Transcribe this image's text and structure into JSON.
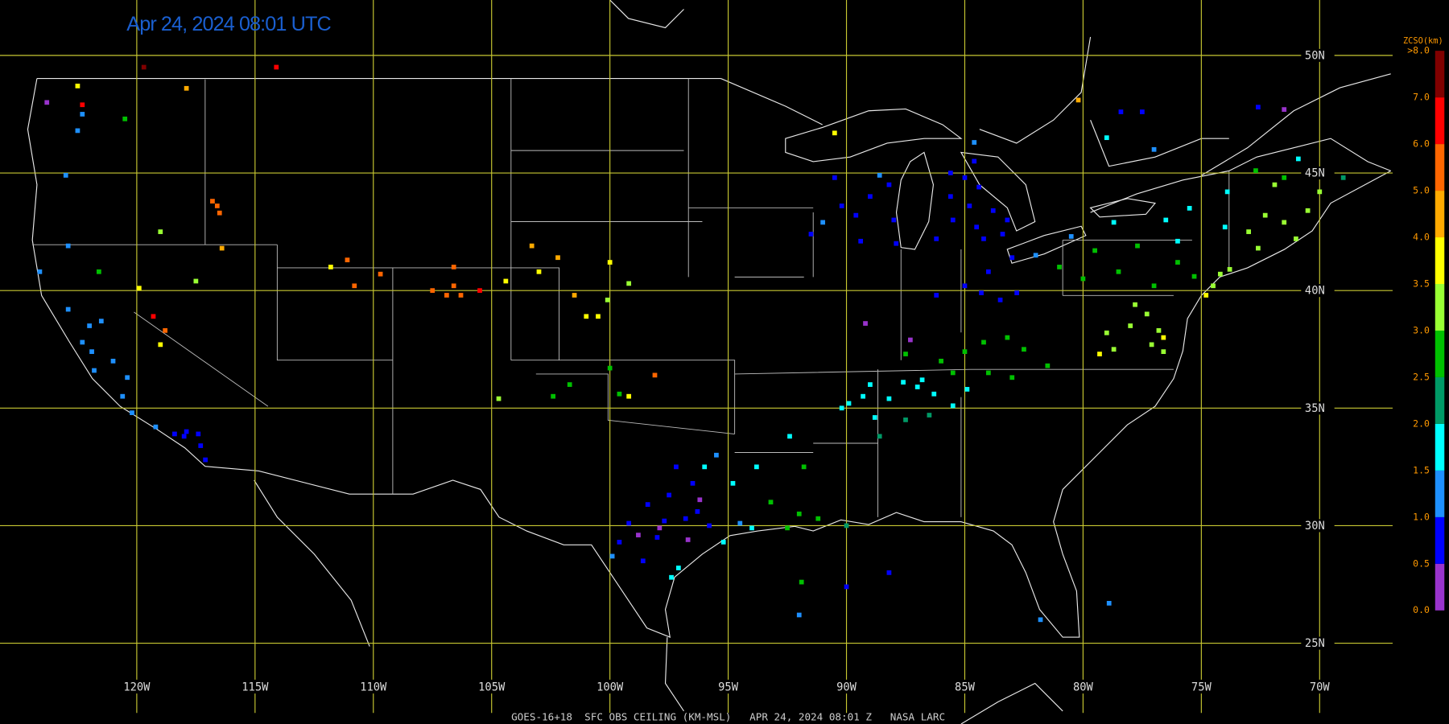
{
  "header": {
    "title": "Apr 24, 2024 08:01 UTC",
    "footer": "GOES-16+18  SFC OBS CEILING (KM-MSL)   APR 24, 2024 08:01 Z   NASA LARC"
  },
  "map": {
    "longitudes": [
      {
        "value": -120,
        "label": "120W"
      },
      {
        "value": -115,
        "label": "115W"
      },
      {
        "value": -110,
        "label": "110W"
      },
      {
        "value": -105,
        "label": "105W"
      },
      {
        "value": -100,
        "label": "100W"
      },
      {
        "value": -95,
        "label": "95W"
      },
      {
        "value": -90,
        "label": "90W"
      },
      {
        "value": -85,
        "label": "85W"
      },
      {
        "value": -80,
        "label": "80W"
      },
      {
        "value": -75,
        "label": "75W"
      },
      {
        "value": -70,
        "label": "70W"
      }
    ],
    "latitudes": [
      {
        "value": 50,
        "label": "50N"
      },
      {
        "value": 45,
        "label": "45N"
      },
      {
        "value": 40,
        "label": "40N"
      },
      {
        "value": 35,
        "label": "35N"
      },
      {
        "value": 30,
        "label": "30N"
      },
      {
        "value": 25,
        "label": "25N"
      }
    ],
    "stations": [
      [
        -85.0,
        44.8,
        0.7
      ],
      [
        -84.4,
        44.4,
        0.7
      ],
      [
        -85.6,
        44.0,
        0.7
      ],
      [
        -84.8,
        43.6,
        0.7
      ],
      [
        -83.8,
        43.4,
        0.7
      ],
      [
        -85.5,
        43.0,
        0.7
      ],
      [
        -84.5,
        42.7,
        0.7
      ],
      [
        -83.4,
        42.4,
        0.7
      ],
      [
        -86.2,
        42.2,
        0.7
      ],
      [
        -84.2,
        42.2,
        0.7
      ],
      [
        -83.2,
        43.0,
        0.7
      ],
      [
        -84.6,
        45.5,
        0.7
      ],
      [
        -85.6,
        45.0,
        0.7
      ],
      [
        -89.6,
        43.2,
        0.7
      ],
      [
        -88.2,
        44.5,
        0.7
      ],
      [
        -89.0,
        44.0,
        0.7
      ],
      [
        -88.0,
        43.0,
        0.7
      ],
      [
        -90.5,
        44.8,
        0.7
      ],
      [
        -91.5,
        42.4,
        0.7
      ],
      [
        -89.4,
        42.1,
        0.7
      ],
      [
        -87.9,
        42.0,
        0.7
      ],
      [
        -90.2,
        43.6,
        0.7
      ],
      [
        -91.0,
        42.9,
        1.2
      ],
      [
        -88.6,
        44.9,
        1.2
      ],
      [
        -84.3,
        39.9,
        0.8
      ],
      [
        -83.5,
        39.6,
        0.8
      ],
      [
        -85.0,
        40.2,
        0.8
      ],
      [
        -82.8,
        39.9,
        0.8
      ],
      [
        -86.2,
        39.8,
        0.8
      ],
      [
        -84.0,
        40.8,
        0.8
      ],
      [
        -83.0,
        41.4,
        0.8
      ],
      [
        -82.0,
        41.5,
        1.2
      ],
      [
        -89.2,
        38.6,
        0.3
      ],
      [
        -87.3,
        37.9,
        0.3
      ],
      [
        -89.9,
        35.2,
        1.8
      ],
      [
        -89.0,
        36.0,
        1.8
      ],
      [
        -88.2,
        35.4,
        1.8
      ],
      [
        -87.6,
        36.1,
        1.8
      ],
      [
        -86.8,
        36.2,
        1.8
      ],
      [
        -86.3,
        35.6,
        1.8
      ],
      [
        -85.5,
        35.1,
        1.8
      ],
      [
        -89.3,
        35.5,
        1.8
      ],
      [
        -88.8,
        34.6,
        1.8
      ],
      [
        -87.0,
        35.9,
        1.8
      ],
      [
        -84.9,
        35.8,
        1.8
      ],
      [
        -90.2,
        35.0,
        1.8
      ],
      [
        -86.0,
        37.0,
        2.7
      ],
      [
        -85.0,
        37.4,
        2.7
      ],
      [
        -84.2,
        37.8,
        2.7
      ],
      [
        -83.2,
        38.0,
        2.7
      ],
      [
        -82.5,
        37.5,
        2.7
      ],
      [
        -84.0,
        36.5,
        2.7
      ],
      [
        -83.0,
        36.3,
        2.7
      ],
      [
        -81.5,
        36.8,
        2.7
      ],
      [
        -85.5,
        36.5,
        2.7
      ],
      [
        -87.5,
        37.3,
        2.7
      ],
      [
        -88.6,
        33.8,
        2.2
      ],
      [
        -87.5,
        34.5,
        2.2
      ],
      [
        -86.5,
        34.7,
        2.2
      ],
      [
        -78.0,
        38.5,
        3.2
      ],
      [
        -77.3,
        39.0,
        3.2
      ],
      [
        -79.0,
        38.2,
        3.2
      ],
      [
        -76.8,
        38.3,
        3.2
      ],
      [
        -77.8,
        39.4,
        3.2
      ],
      [
        -78.7,
        37.5,
        3.2
      ],
      [
        -76.6,
        37.4,
        3.2
      ],
      [
        -76.6,
        38.0,
        3.8
      ],
      [
        -79.3,
        37.3,
        3.8
      ],
      [
        -77.1,
        37.7,
        3.2
      ],
      [
        -80.0,
        40.5,
        2.8
      ],
      [
        -78.5,
        40.8,
        2.8
      ],
      [
        -77.0,
        40.2,
        2.8
      ],
      [
        -76.0,
        41.2,
        2.8
      ],
      [
        -75.3,
        40.6,
        2.8
      ],
      [
        -79.5,
        41.7,
        2.8
      ],
      [
        -77.7,
        41.9,
        2.8
      ],
      [
        -80.5,
        42.3,
        1.2
      ],
      [
        -81.0,
        41.0,
        2.8
      ],
      [
        -76.5,
        43.0,
        1.8
      ],
      [
        -74.0,
        42.7,
        1.8
      ],
      [
        -75.5,
        43.5,
        1.8
      ],
      [
        -73.9,
        44.2,
        1.8
      ],
      [
        -78.7,
        42.9,
        1.8
      ],
      [
        -76.0,
        42.1,
        1.8
      ],
      [
        -74.2,
        40.7,
        3.3
      ],
      [
        -73.8,
        40.9,
        3.3
      ],
      [
        -74.5,
        40.2,
        3.3
      ],
      [
        -74.8,
        39.8,
        3.7
      ],
      [
        -73.0,
        42.5,
        3.2
      ],
      [
        -72.3,
        43.2,
        3.2
      ],
      [
        -71.5,
        42.9,
        3.2
      ],
      [
        -71.0,
        42.2,
        3.2
      ],
      [
        -72.6,
        41.8,
        3.2
      ],
      [
        -70.5,
        43.4,
        3.2
      ],
      [
        -70.0,
        44.2,
        3.2
      ],
      [
        -71.9,
        44.5,
        3.2
      ],
      [
        -71.5,
        44.8,
        2.7
      ],
      [
        -72.7,
        45.1,
        2.7
      ],
      [
        -69.0,
        44.8,
        2.3
      ],
      [
        -70.9,
        45.6,
        1.8
      ],
      [
        -98.4,
        30.9,
        0.8
      ],
      [
        -97.5,
        31.3,
        0.8
      ],
      [
        -96.8,
        30.3,
        0.8
      ],
      [
        -97.7,
        30.2,
        0.8
      ],
      [
        -96.3,
        30.6,
        0.8
      ],
      [
        -99.2,
        30.1,
        0.8
      ],
      [
        -98.0,
        29.5,
        0.8
      ],
      [
        -95.8,
        30.0,
        0.8
      ],
      [
        -97.2,
        32.5,
        0.8
      ],
      [
        -96.5,
        31.8,
        0.8
      ],
      [
        -99.6,
        29.3,
        0.8
      ],
      [
        -98.6,
        28.5,
        0.8
      ],
      [
        -97.9,
        29.9,
        0.3
      ],
      [
        -96.7,
        29.4,
        0.3
      ],
      [
        -98.8,
        29.6,
        0.3
      ],
      [
        -96.2,
        31.1,
        0.3
      ],
      [
        -94.5,
        30.1,
        1.2
      ],
      [
        -95.5,
        33.0,
        1.2
      ],
      [
        -99.9,
        28.7,
        1.2
      ],
      [
        -97.4,
        27.8,
        1.7
      ],
      [
        -97.1,
        28.2,
        1.7
      ],
      [
        -95.2,
        29.3,
        1.7
      ],
      [
        -94.0,
        29.9,
        1.7
      ],
      [
        -96.0,
        32.5,
        1.7
      ],
      [
        -94.8,
        31.8,
        1.7
      ],
      [
        -93.8,
        32.5,
        1.7
      ],
      [
        -92.4,
        33.8,
        1.7
      ],
      [
        -92.0,
        30.5,
        2.7
      ],
      [
        -91.2,
        30.3,
        2.7
      ],
      [
        -93.2,
        31.0,
        2.7
      ],
      [
        -91.8,
        32.5,
        2.7
      ],
      [
        -92.5,
        29.9,
        2.7
      ],
      [
        -90.0,
        30.0,
        2.3
      ],
      [
        -91.9,
        27.6,
        2.7
      ],
      [
        -92.0,
        26.2,
        1.2
      ],
      [
        -90.0,
        27.4,
        0.8
      ],
      [
        -88.2,
        28.0,
        0.8
      ],
      [
        -81.8,
        26.0,
        1.2
      ],
      [
        -78.9,
        26.7,
        1.2
      ],
      [
        -102.4,
        35.5,
        2.7
      ],
      [
        -101.7,
        36.0,
        2.7
      ],
      [
        -100.0,
        36.7,
        2.7
      ],
      [
        -99.6,
        35.6,
        2.7
      ],
      [
        -99.2,
        35.5,
        3.7
      ],
      [
        -98.1,
        36.4,
        5.8
      ],
      [
        -104.7,
        35.4,
        3.2
      ],
      [
        -101.0,
        38.9,
        3.8
      ],
      [
        -100.5,
        38.9,
        3.8
      ],
      [
        -104.4,
        40.4,
        3.8
      ],
      [
        -103.0,
        40.8,
        3.8
      ],
      [
        -100.0,
        41.2,
        3.8
      ],
      [
        -101.5,
        39.8,
        4.5
      ],
      [
        -102.2,
        41.4,
        4.5
      ],
      [
        -103.3,
        41.9,
        4.5
      ],
      [
        -100.1,
        39.6,
        3.2
      ],
      [
        -99.2,
        40.3,
        3.2
      ],
      [
        -107.5,
        40.0,
        5.8
      ],
      [
        -106.6,
        40.2,
        5.8
      ],
      [
        -106.9,
        39.8,
        5.8
      ],
      [
        -106.3,
        39.8,
        5.8
      ],
      [
        -109.7,
        40.7,
        5.0
      ],
      [
        -106.6,
        41.0,
        5.0
      ],
      [
        -105.5,
        40.0,
        6.5
      ],
      [
        -111.8,
        41.0,
        3.7
      ],
      [
        -111.1,
        41.3,
        5.8
      ],
      [
        -110.8,
        40.2,
        5.2
      ],
      [
        -117.5,
        40.4,
        3.2
      ],
      [
        -116.4,
        41.8,
        4.8
      ],
      [
        -116.5,
        43.3,
        5.0
      ],
      [
        -116.8,
        43.8,
        5.8
      ],
      [
        -119.0,
        42.5,
        3.2
      ],
      [
        -118.8,
        38.3,
        5.2
      ],
      [
        -119.0,
        37.7,
        3.8
      ],
      [
        -119.9,
        40.1,
        3.7
      ],
      [
        -119.3,
        38.9,
        6.3
      ],
      [
        -122.3,
        37.8,
        1.2
      ],
      [
        -121.9,
        37.4,
        1.2
      ],
      [
        -122.0,
        38.5,
        1.2
      ],
      [
        -121.5,
        38.7,
        1.2
      ],
      [
        -121.0,
        37.0,
        1.2
      ],
      [
        -120.4,
        36.3,
        1.2
      ],
      [
        -121.8,
        36.6,
        1.2
      ],
      [
        -122.9,
        39.2,
        1.2
      ],
      [
        -120.6,
        35.5,
        1.2
      ],
      [
        -120.2,
        34.8,
        1.2
      ],
      [
        -124.1,
        40.8,
        1.2
      ],
      [
        -118.4,
        33.9,
        0.8
      ],
      [
        -117.9,
        34.0,
        0.8
      ],
      [
        -117.4,
        33.9,
        0.8
      ],
      [
        -117.1,
        32.8,
        0.8
      ],
      [
        -117.3,
        33.4,
        0.8
      ],
      [
        -118.0,
        33.8,
        0.8
      ],
      [
        -119.2,
        34.2,
        1.2
      ],
      [
        -122.3,
        47.5,
        1.2
      ],
      [
        -122.5,
        46.8,
        1.2
      ],
      [
        -123.0,
        44.9,
        1.2
      ],
      [
        -122.9,
        41.9,
        1.2
      ],
      [
        -122.5,
        48.7,
        3.8
      ],
      [
        -122.3,
        47.9,
        6.5
      ],
      [
        -121.6,
        40.8,
        2.7
      ],
      [
        -120.5,
        47.3,
        2.7
      ],
      [
        -123.8,
        48.0,
        0.3
      ],
      [
        -119.7,
        49.5,
        7.5
      ],
      [
        -114.1,
        49.5,
        6.5
      ],
      [
        -117.9,
        48.6,
        4.8
      ],
      [
        -116.6,
        43.6,
        5.0
      ],
      [
        -78.4,
        47.6,
        0.8
      ],
      [
        -77.5,
        47.6,
        0.8
      ],
      [
        -72.6,
        47.8,
        0.8
      ],
      [
        -71.5,
        47.7,
        0.3
      ],
      [
        -84.6,
        46.3,
        1.2
      ],
      [
        -90.5,
        46.7,
        3.7
      ],
      [
        -80.2,
        48.1,
        4.7
      ],
      [
        -77.0,
        46.0,
        1.2
      ],
      [
        -79.0,
        46.5,
        1.8
      ]
    ]
  },
  "legend": {
    "title": "ZCSO(km)",
    "levels": [
      {
        "value": 0,
        "label": "0.0"
      },
      {
        "value": 0.5,
        "label": "0.5"
      },
      {
        "value": 1,
        "label": "1.0"
      },
      {
        "value": 1.5,
        "label": "1.5"
      },
      {
        "value": 2,
        "label": "2.0"
      },
      {
        "value": 2.5,
        "label": "2.5"
      },
      {
        "value": 3,
        "label": "3.0"
      },
      {
        "value": 3.5,
        "label": "3.5"
      },
      {
        "value": 4,
        "label": "4.0"
      },
      {
        "value": 5,
        "label": "5.0"
      },
      {
        "value": 6,
        "label": "6.0"
      },
      {
        "value": 7,
        "label": "7.0"
      },
      {
        "value": 8,
        "label": ">8.0"
      }
    ],
    "colors": [
      "#9933cc",
      "#0000ff",
      "#1e90ff",
      "#00ffff",
      "#009966",
      "#00c000",
      "#99ff33",
      "#ffff00",
      "#ffaa00",
      "#ff6600",
      "#ff0000",
      "#800000"
    ]
  }
}
